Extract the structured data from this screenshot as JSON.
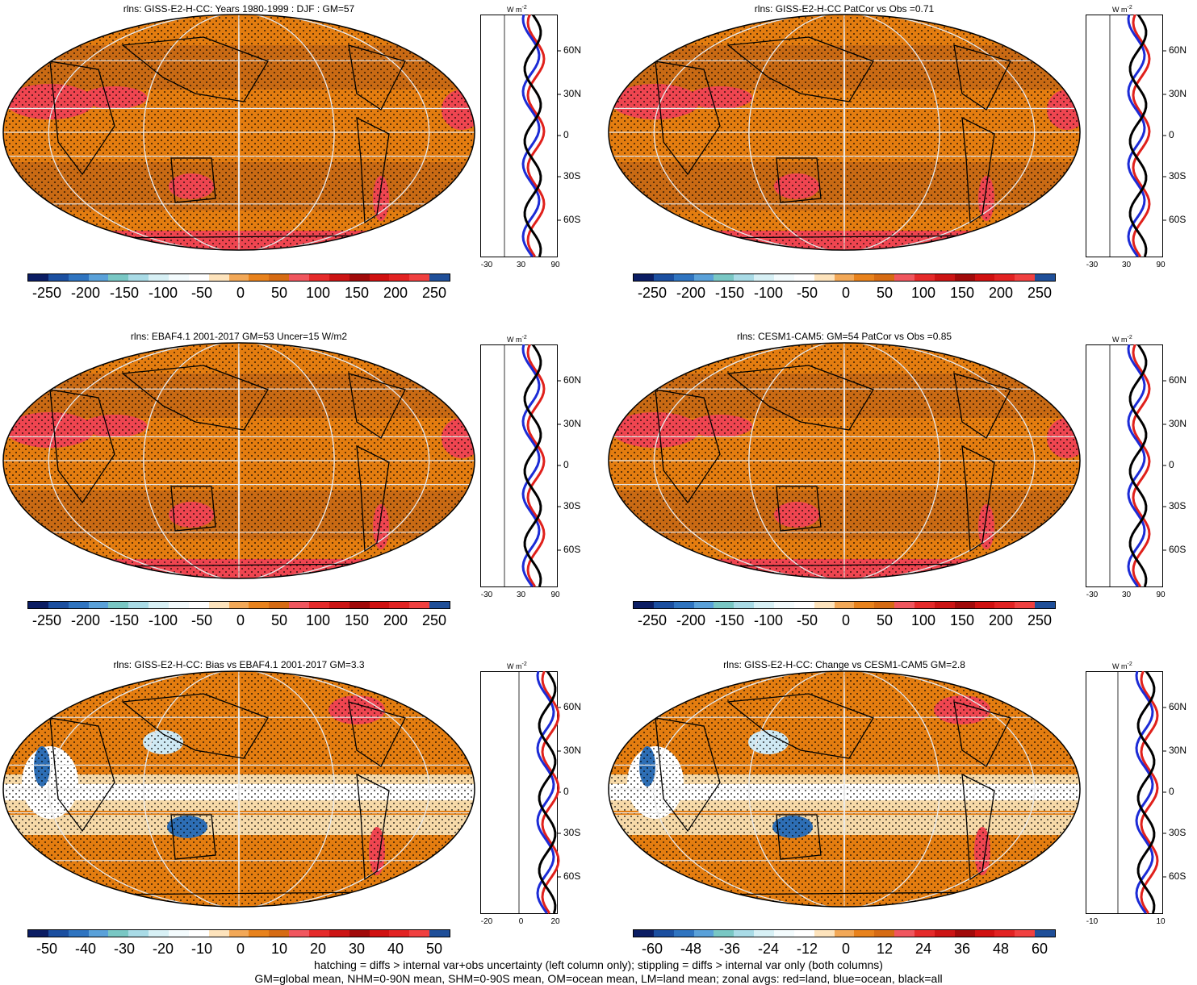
{
  "colorbar_palette": [
    "#0b1d63",
    "#1b4fa0",
    "#2f74c0",
    "#5aa1d9",
    "#79c7c4",
    "#a9dbe6",
    "#d7f0f5",
    "#f3fbfd",
    "#ffffff",
    "#fde3bc",
    "#f2a857",
    "#e8821c",
    "#d66b13",
    "#f0565e",
    "#e52a2a",
    "#cc1414",
    "#a10a0a",
    "#d01010",
    "#e22222",
    "#f04040",
    "#1f4f99"
  ],
  "map_colors": {
    "ocean_orange": "#e47d10",
    "dark_orange": "#c96a14",
    "red_patch": "#ef4550",
    "pale": "#f6d9a8",
    "light_blue": "#cfe9f3",
    "dark_blue": "#2d6eb5"
  },
  "zonal_colors": {
    "land": "#e0201b",
    "ocean": "#1c2bd6",
    "all": "#000000"
  },
  "panels": [
    {
      "title": "rlns: GISS-E2-H-CC: Years 1980-1999 : DJF : GM=57",
      "cbar_labels": [
        "-250",
        "-200",
        "-150",
        "-100",
        "-50",
        "0",
        "50",
        "100",
        "150",
        "200",
        "250"
      ],
      "zonal_unit": "W m",
      "zonal_unit_sup": "-2",
      "zonal_xticks": [
        "-30",
        "30",
        "90"
      ],
      "zonal_lat_labels": [
        "60N",
        "30N",
        "0",
        "30S",
        "60S"
      ]
    },
    {
      "title": "rlns: GISS-E2-H-CC PatCor vs Obs =0.71",
      "cbar_labels": [
        "-250",
        "-200",
        "-150",
        "-100",
        "-50",
        "0",
        "50",
        "100",
        "150",
        "200",
        "250"
      ],
      "zonal_unit": "W m",
      "zonal_unit_sup": "-2",
      "zonal_xticks": [
        "-30",
        "30",
        "90"
      ],
      "zonal_lat_labels": [
        "60N",
        "30N",
        "0",
        "30S",
        "60S"
      ]
    },
    {
      "title": "rlns: EBAF4.1 2001-2017 GM=53 Uncer=15 W/m2",
      "cbar_labels": [
        "-250",
        "-200",
        "-150",
        "-100",
        "-50",
        "0",
        "50",
        "100",
        "150",
        "200",
        "250"
      ],
      "zonal_unit": "W m",
      "zonal_unit_sup": "-2",
      "zonal_xticks": [
        "-30",
        "30",
        "90"
      ],
      "zonal_lat_labels": [
        "60N",
        "30N",
        "0",
        "30S",
        "60S"
      ]
    },
    {
      "title": "rlns: CESM1-CAM5: GM=54 PatCor vs Obs =0.85",
      "cbar_labels": [
        "-250",
        "-200",
        "-150",
        "-100",
        "-50",
        "0",
        "50",
        "100",
        "150",
        "200",
        "250"
      ],
      "zonal_unit": "W m",
      "zonal_unit_sup": "-2",
      "zonal_xticks": [
        "-30",
        "30",
        "90"
      ],
      "zonal_lat_labels": [
        "60N",
        "30N",
        "0",
        "30S",
        "60S"
      ]
    },
    {
      "title": "rlns: GISS-E2-H-CC: Bias vs EBAF4.1 2001-2017 GM=3.3",
      "cbar_labels": [
        "-50",
        "-40",
        "-30",
        "-20",
        "-10",
        "0",
        "10",
        "20",
        "30",
        "40",
        "50"
      ],
      "zonal_unit": "W m",
      "zonal_unit_sup": "-2",
      "zonal_xticks": [
        "-20",
        "0",
        "20"
      ],
      "zonal_lat_labels": [
        "60N",
        "30N",
        "0",
        "30S",
        "60S"
      ]
    },
    {
      "title": "rlns: GISS-E2-H-CC: Change vs CESM1-CAM5 GM=2.8",
      "cbar_labels": [
        "-60",
        "-48",
        "-36",
        "-24",
        "-12",
        "0",
        "12",
        "24",
        "36",
        "48",
        "60"
      ],
      "zonal_unit": "W m",
      "zonal_unit_sup": "-2",
      "zonal_xticks": [
        "-10",
        "10"
      ],
      "zonal_lat_labels": [
        "60N",
        "30N",
        "0",
        "30S",
        "60S"
      ]
    }
  ],
  "footer": {
    "line1": "hatching = diffs > internal var+obs uncertainty (left column only); stippling = diffs > internal var only (both columns)",
    "line2": "GM=global mean, NHM=0-90N mean, SHM=0-90S mean, OM=ocean mean, LM=land mean; zonal avgs: red=land, blue=ocean, black=all"
  }
}
